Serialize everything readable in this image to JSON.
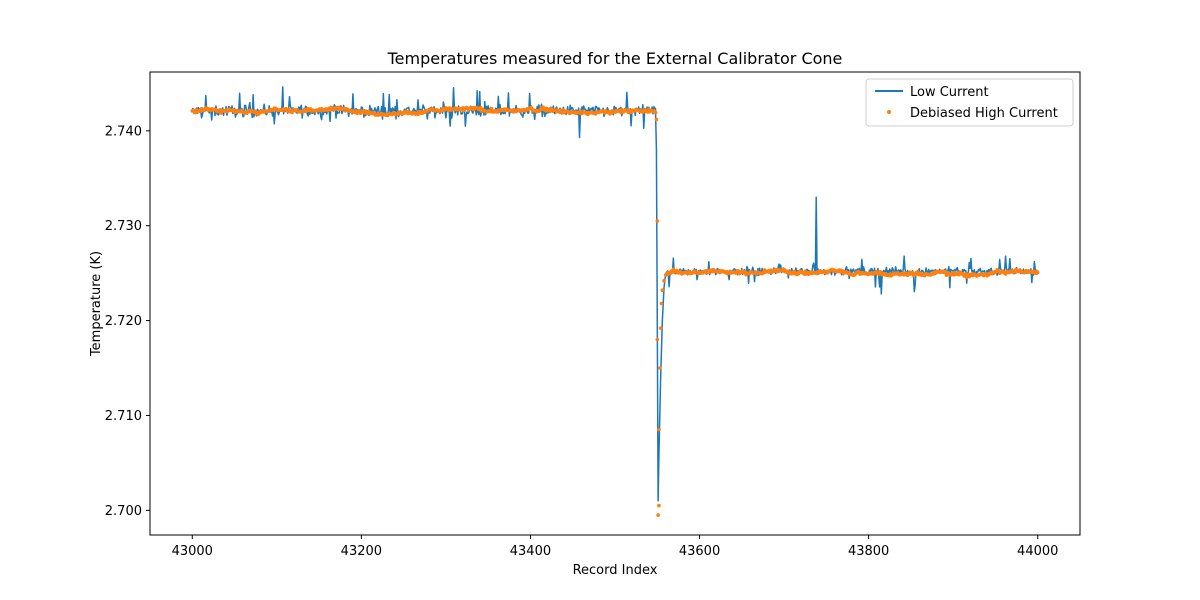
{
  "chart_data": {
    "type": "line",
    "title": "Temperatures measured for the External Calibrator Cone",
    "xlabel": "Record Index",
    "ylabel": "Temperature (K)",
    "xlim": [
      42950,
      44050
    ],
    "ylim": [
      2.6974,
      2.7462
    ],
    "xticks": [
      43000,
      43200,
      43400,
      43600,
      43800,
      44000
    ],
    "yticks": [
      2.7,
      2.71,
      2.72,
      2.73,
      2.74
    ],
    "ytick_labels": [
      "2.700",
      "2.710",
      "2.720",
      "2.730",
      "2.740"
    ],
    "legend_position": "top-right",
    "series": [
      {
        "name": "Low Current",
        "style": "line",
        "color": "#1f77b4",
        "segments": [
          {
            "x_start": 43000,
            "x_end": 43548,
            "mean": 2.7421,
            "noise": 0.0007,
            "spike_chance": 0.06,
            "spike_amp": 0.0013
          },
          {
            "x_start": 43560,
            "x_end": 44000,
            "mean": 2.7252,
            "noise": 0.0005,
            "spike_chance": 0.06,
            "spike_amp": 0.0013
          }
        ],
        "transition_points": [
          [
            43548,
            2.7418
          ],
          [
            43549,
            2.738
          ],
          [
            43550,
            2.72
          ],
          [
            43551,
            2.701
          ],
          [
            43552,
            2.706
          ],
          [
            43554,
            2.714
          ],
          [
            43556,
            2.72
          ],
          [
            43558,
            2.7235
          ],
          [
            43560,
            2.725
          ]
        ],
        "spikes": [
          [
            43738,
            2.733
          ],
          [
            43458,
            2.7393
          ],
          [
            43305,
            2.7405
          ],
          [
            43815,
            2.7228
          ]
        ]
      },
      {
        "name": "Debiased High Current",
        "style": "scatter",
        "color": "#ff7f0e",
        "segments": [
          {
            "x_start": 43000,
            "x_end": 43548,
            "mean": 2.7421,
            "noise": 0.00025
          },
          {
            "x_start": 43562,
            "x_end": 44000,
            "mean": 2.7251,
            "noise": 0.00025
          }
        ],
        "transition_points": [
          [
            43549,
            2.7412
          ],
          [
            43550,
            2.7305
          ],
          [
            43550,
            2.718
          ],
          [
            43551,
            2.6995
          ],
          [
            43552,
            2.7005
          ],
          [
            43552,
            2.7085
          ],
          [
            43553,
            2.715
          ],
          [
            43554,
            2.7192
          ],
          [
            43555,
            2.7218
          ],
          [
            43556,
            2.7232
          ],
          [
            43558,
            2.7242
          ],
          [
            43560,
            2.7248
          ]
        ]
      }
    ]
  }
}
